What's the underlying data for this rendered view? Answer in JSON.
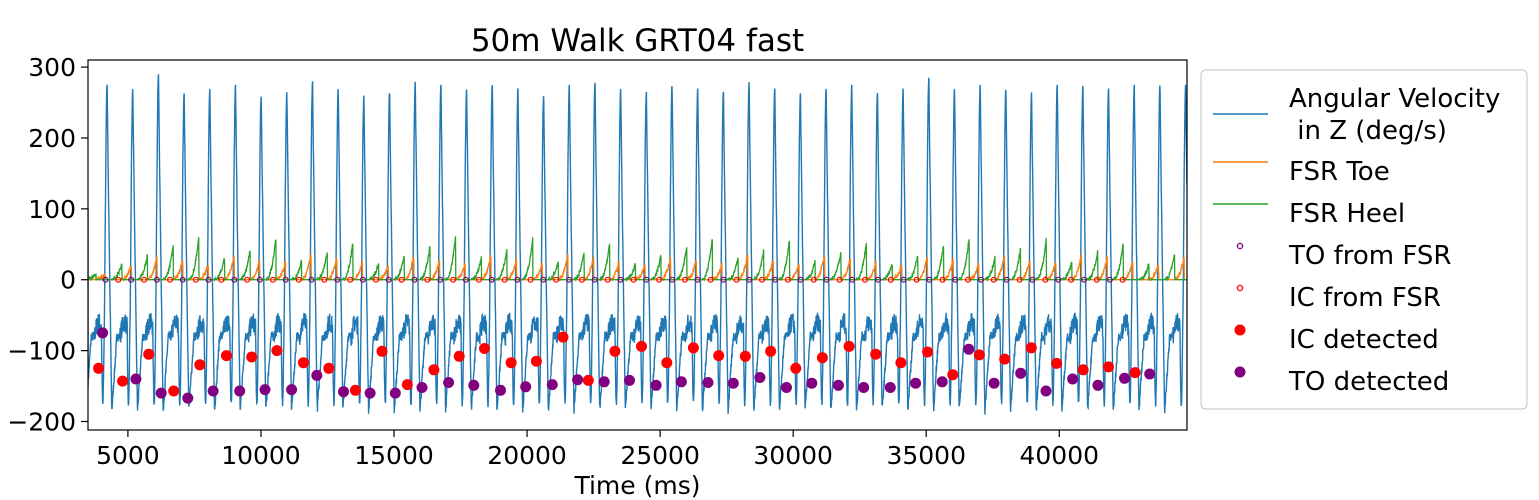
{
  "chart_data": {
    "type": "line",
    "title": "50m Walk GRT04 fast",
    "xlabel": "Time (ms)",
    "ylabel": "",
    "xlim": [
      3500,
      44800
    ],
    "ylim": [
      -212,
      310
    ],
    "xticks": [
      5000,
      10000,
      15000,
      20000,
      25000,
      30000,
      35000,
      40000
    ],
    "xtick_labels": [
      "5000",
      "10000",
      "15000",
      "20000",
      "25000",
      "30000",
      "35000",
      "40000"
    ],
    "yticks": [
      -200,
      -100,
      0,
      100,
      200,
      300
    ],
    "ytick_labels": [
      "−200",
      "−100",
      "0",
      "100",
      "200",
      "300"
    ],
    "grid": false,
    "legend_position": "outside-right",
    "legend": [
      {
        "label_lines": [
          "Angular Velocity",
          " in Z (deg/s)"
        ],
        "kind": "line",
        "color": "#1f77b4"
      },
      {
        "label_lines": [
          "FSR Toe"
        ],
        "kind": "line",
        "color": "#ff7f0e"
      },
      {
        "label_lines": [
          "FSR Heel"
        ],
        "kind": "line",
        "color": "#2ca02c"
      },
      {
        "label_lines": [
          "TO from FSR"
        ],
        "kind": "hollow",
        "color": "#800080"
      },
      {
        "label_lines": [
          "IC from FSR"
        ],
        "kind": "hollow",
        "color": "#ff0000"
      },
      {
        "label_lines": [
          "IC detected"
        ],
        "kind": "filled",
        "color": "#ff0000"
      },
      {
        "label_lines": [
          "TO detected"
        ],
        "kind": "filled",
        "color": "#800080"
      }
    ],
    "series": [
      {
        "name": "Angular Velocity\n in Z (deg/s)",
        "color": "#1f77b4",
        "period_ms": 965,
        "first_peak_x": 4220,
        "peak_values": [
          275,
          270,
          290,
          265,
          270,
          275,
          260,
          265,
          280,
          270,
          260,
          265,
          280,
          275,
          270,
          275,
          270,
          260,
          275,
          280,
          270,
          265,
          275,
          270,
          265,
          280,
          270,
          265,
          270,
          275,
          265,
          270,
          285,
          270,
          275,
          270,
          265,
          275,
          275,
          270,
          275
        ],
        "stance_level": -80,
        "trough_level": -175
      },
      {
        "name": "FSR Toe",
        "color": "#ff7f0e",
        "typical_peak": 30,
        "max_peak": 50
      },
      {
        "name": "FSR Heel",
        "color": "#2ca02c",
        "typical_peak": 45,
        "max_peak": 90
      },
      {
        "name": "TO from FSR",
        "color": "#800080",
        "y": [
          0,
          0,
          0,
          0,
          0,
          0,
          0,
          0,
          0,
          0,
          0,
          0,
          0,
          0,
          0,
          0,
          0,
          0,
          0,
          0,
          0,
          0,
          0,
          0,
          0,
          0,
          0,
          0,
          0,
          0,
          0,
          0,
          0,
          0,
          0,
          0,
          0,
          0,
          0,
          0
        ],
        "x": [
          4160,
          5120,
          6090,
          7060,
          8030,
          9000,
          9960,
          10930,
          11900,
          12870,
          13830,
          14800,
          15770,
          16740,
          17700,
          18670,
          19640,
          20610,
          21580,
          22540,
          23510,
          24480,
          25450,
          26410,
          27380,
          28350,
          29320,
          30280,
          31250,
          32220,
          33190,
          34150,
          35120,
          36090,
          37060,
          38020,
          38990,
          39960,
          40930,
          41900
        ]
      },
      {
        "name": "IC from FSR",
        "color": "#ff0000",
        "y": [
          0,
          0,
          0,
          0,
          0,
          0,
          0,
          0,
          0,
          0,
          0,
          0,
          0,
          0,
          0,
          0,
          0,
          0,
          0,
          0,
          0,
          0,
          0,
          0,
          0,
          0,
          0,
          0,
          0,
          0,
          0,
          0,
          0,
          0,
          0,
          0,
          0,
          0,
          0,
          0
        ],
        "x": [
          4640,
          5610,
          6580,
          7550,
          8510,
          9480,
          10450,
          11420,
          12380,
          13350,
          14320,
          15290,
          16250,
          17220,
          18190,
          19160,
          20130,
          21090,
          22060,
          23030,
          24000,
          24960,
          25930,
          26900,
          27870,
          28830,
          29800,
          30770,
          31740,
          32700,
          33670,
          34640,
          35610,
          36570,
          37540,
          38510,
          39480,
          40440,
          41410,
          42380
        ]
      },
      {
        "name": "IC detected",
        "color": "#ff0000",
        "x": [
          3900,
          4800,
          5780,
          6720,
          7700,
          8700,
          9650,
          10600,
          11600,
          12550,
          13550,
          14550,
          15500,
          16500,
          17450,
          18400,
          19400,
          20350,
          21350,
          22300,
          23300,
          24300,
          25250,
          26250,
          27200,
          28200,
          29150,
          30100,
          31100,
          32100,
          33100,
          34050,
          35050,
          36000,
          37000,
          37950,
          38950,
          39900,
          40900,
          41850,
          42850
        ],
        "y": [
          -125,
          -143,
          -105,
          -157,
          -120,
          -107,
          -109,
          -100,
          -117,
          -125,
          -156,
          -101,
          -148,
          -127,
          -108,
          -97,
          -117,
          -115,
          -81,
          -142,
          -101,
          -94,
          -117,
          -96,
          -107,
          -108,
          -101,
          -125,
          -110,
          -94,
          -105,
          -117,
          -102,
          -134,
          -106,
          -112,
          -96,
          -118,
          -127,
          -123,
          -131
        ]
      },
      {
        "name": "TO detected",
        "color": "#800080",
        "x": [
          4050,
          5300,
          6250,
          7250,
          8200,
          9200,
          10150,
          11150,
          12100,
          13100,
          14100,
          15050,
          16050,
          17050,
          18000,
          19000,
          19950,
          20950,
          21900,
          22900,
          23850,
          24850,
          25800,
          26800,
          27750,
          28750,
          29750,
          30700,
          31700,
          32650,
          33650,
          34600,
          35600,
          36600,
          37550,
          38550,
          39500,
          40500,
          41450,
          42450,
          43400
        ],
        "y": [
          -75,
          -140,
          -160,
          -167,
          -157,
          -157,
          -155,
          -155,
          -135,
          -158,
          -160,
          -160,
          -152,
          -145,
          -149,
          -156,
          -151,
          -148,
          -141,
          -144,
          -142,
          -149,
          -144,
          -145,
          -146,
          -138,
          -152,
          -146,
          -149,
          -152,
          -152,
          -146,
          -144,
          -98,
          -146,
          -132,
          -157,
          -140,
          -149,
          -139,
          -133
        ]
      }
    ]
  }
}
